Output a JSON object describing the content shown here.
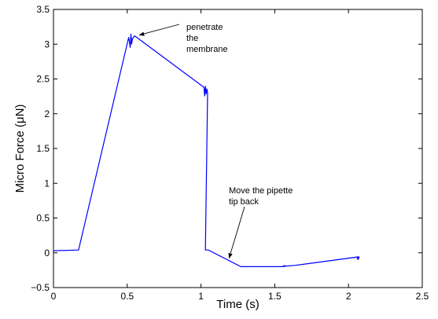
{
  "chart_data": {
    "type": "line",
    "title": "",
    "xlabel": "Time (s)",
    "ylabel": "Micro Force (μN)",
    "xlim": [
      0,
      2.5
    ],
    "ylim": [
      -0.5,
      3.5
    ],
    "xticks": [
      0,
      0.5,
      1,
      1.5,
      2,
      2.5
    ],
    "yticks": [
      -0.5,
      0,
      0.5,
      1,
      1.5,
      2,
      2.5,
      3,
      3.5
    ],
    "xtick_labels": [
      "0",
      "0.5",
      "1",
      "1.5",
      "2",
      "2.5"
    ],
    "ytick_labels": [
      "−0.5",
      "0",
      "0.5",
      "1",
      "1.5",
      "2",
      "2.5",
      "3",
      "3.5"
    ],
    "grid": false,
    "line_color": "#0000ff",
    "series": [
      {
        "x": [
          0,
          0.17,
          0.51,
          0.52,
          0.525,
          0.53,
          0.535,
          0.55,
          1.02,
          1.025,
          1.03,
          1.035,
          1.04,
          1.045,
          1.03,
          1.05,
          1.27,
          1.55,
          1.57,
          1.55,
          1.58,
          1.64,
          2.06,
          2.065,
          2.07,
          2.06,
          2.075
        ],
        "y": [
          0.03,
          0.04,
          3.1,
          2.95,
          3.15,
          3.0,
          3.08,
          3.12,
          2.38,
          2.25,
          2.4,
          2.28,
          2.36,
          2.3,
          0.04,
          0.04,
          -0.2,
          -0.2,
          -0.18,
          -0.2,
          -0.19,
          -0.18,
          -0.06,
          -0.1,
          -0.05,
          -0.08,
          -0.07
        ]
      }
    ],
    "annotations": [
      {
        "lines": [
          "penetrate",
          "the",
          "membrane"
        ],
        "arrow_to": [
          0.58,
          3.13
        ]
      },
      {
        "lines": [
          "Move the pipette",
          "tip back"
        ],
        "arrow_to": [
          1.19,
          -0.08
        ]
      }
    ]
  }
}
